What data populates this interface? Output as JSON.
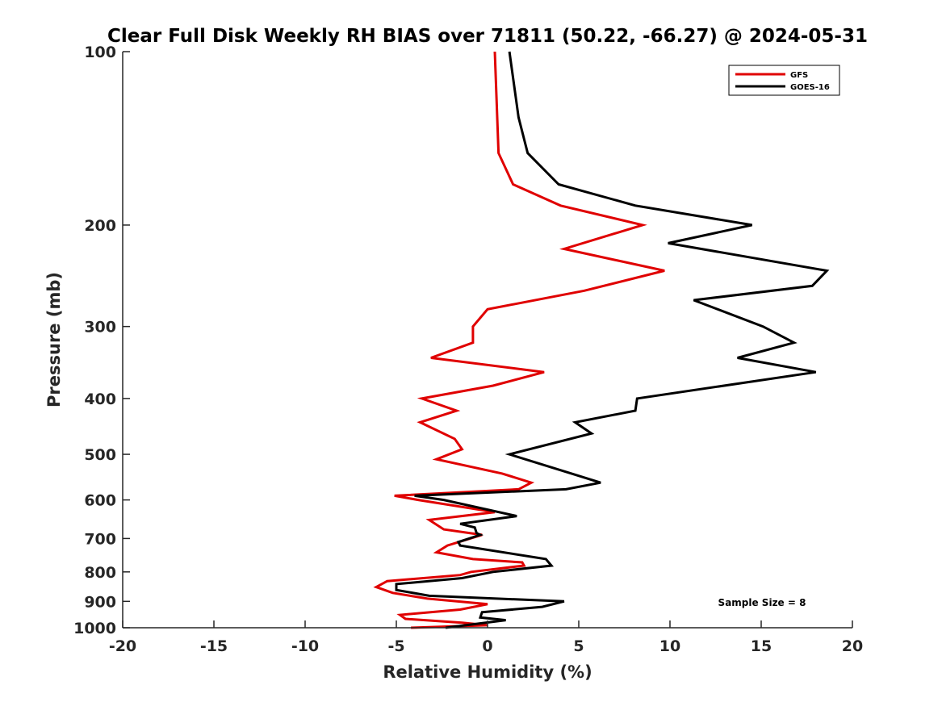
{
  "chart_data": {
    "type": "line",
    "title": "Clear Full Disk Weekly RH BIAS over 71811 (50.22, -66.27) @ 2024-05-31",
    "xlabel": "Relative Humidity (%)",
    "ylabel": "Pressure (mb)",
    "xlim": [
      -20,
      20
    ],
    "ylim": [
      100,
      1000
    ],
    "y_scale": "log",
    "y_reversed": true,
    "xticks": [
      -20,
      -15,
      -10,
      -5,
      0,
      5,
      10,
      15,
      20
    ],
    "yticks": [
      100,
      200,
      300,
      400,
      500,
      600,
      700,
      800,
      900,
      1000
    ],
    "legend": {
      "position": "top-right"
    },
    "annotation": "Sample Size = 8",
    "series": [
      {
        "name": "GFS",
        "color": "#e00000",
        "points": [
          [
            0.4,
            100
          ],
          [
            0.6,
            150
          ],
          [
            1.4,
            170
          ],
          [
            4.0,
            185
          ],
          [
            8.5,
            200
          ],
          [
            4.2,
            220
          ],
          [
            9.7,
            240
          ],
          [
            5.3,
            260
          ],
          [
            0.0,
            280
          ],
          [
            -0.8,
            300
          ],
          [
            -0.8,
            320
          ],
          [
            -3.1,
            340
          ],
          [
            3.1,
            360
          ],
          [
            0.3,
            380
          ],
          [
            -3.6,
            400
          ],
          [
            -1.7,
            420
          ],
          [
            -3.7,
            440
          ],
          [
            -1.8,
            470
          ],
          [
            -1.4,
            490
          ],
          [
            -2.8,
            510
          ],
          [
            0.8,
            540
          ],
          [
            2.4,
            560
          ],
          [
            1.7,
            575
          ],
          [
            -5.1,
            590
          ],
          [
            -3.8,
            600
          ],
          [
            0.4,
            630
          ],
          [
            -3.2,
            650
          ],
          [
            -2.4,
            675
          ],
          [
            -0.3,
            690
          ],
          [
            -2.2,
            720
          ],
          [
            -2.8,
            740
          ],
          [
            -0.8,
            760
          ],
          [
            1.9,
            770
          ],
          [
            2.0,
            780
          ],
          [
            -0.9,
            800
          ],
          [
            -1.5,
            810
          ],
          [
            -5.5,
            830
          ],
          [
            -6.1,
            850
          ],
          [
            -5.2,
            870
          ],
          [
            -3.3,
            890
          ],
          [
            0.0,
            910
          ],
          [
            -1.5,
            930
          ],
          [
            -4.8,
            950
          ],
          [
            -4.5,
            965
          ],
          [
            -1.4,
            980
          ],
          [
            0.0,
            990
          ],
          [
            -4.2,
            1000
          ]
        ]
      },
      {
        "name": "GOES-16",
        "color": "#000000",
        "points": [
          [
            1.2,
            100
          ],
          [
            1.7,
            130
          ],
          [
            2.2,
            150
          ],
          [
            3.9,
            170
          ],
          [
            8.1,
            185
          ],
          [
            14.5,
            200
          ],
          [
            9.9,
            215
          ],
          [
            18.6,
            240
          ],
          [
            17.8,
            255
          ],
          [
            11.3,
            270
          ],
          [
            15.1,
            300
          ],
          [
            16.8,
            320
          ],
          [
            13.7,
            340
          ],
          [
            18.0,
            360
          ],
          [
            8.2,
            400
          ],
          [
            8.1,
            420
          ],
          [
            4.8,
            440
          ],
          [
            5.7,
            460
          ],
          [
            1.2,
            500
          ],
          [
            4.6,
            540
          ],
          [
            6.2,
            560
          ],
          [
            4.3,
            575
          ],
          [
            -4.0,
            590
          ],
          [
            -2.4,
            600
          ],
          [
            1.6,
            640
          ],
          [
            -1.5,
            660
          ],
          [
            -0.7,
            670
          ],
          [
            -0.6,
            685
          ],
          [
            -0.4,
            690
          ],
          [
            -1.6,
            710
          ],
          [
            -1.5,
            720
          ],
          [
            3.2,
            760
          ],
          [
            3.5,
            780
          ],
          [
            0.3,
            800
          ],
          [
            -1.4,
            820
          ],
          [
            -5.0,
            840
          ],
          [
            -5.0,
            860
          ],
          [
            -3.2,
            880
          ],
          [
            4.2,
            900
          ],
          [
            3.0,
            920
          ],
          [
            -0.3,
            940
          ],
          [
            -0.4,
            960
          ],
          [
            1.0,
            970
          ],
          [
            -2.3,
            1000
          ]
        ]
      }
    ]
  }
}
